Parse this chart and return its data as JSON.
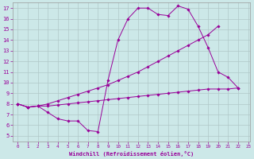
{
  "line1_x": [
    0,
    1,
    2,
    3,
    4,
    5,
    6,
    7,
    8,
    9,
    10,
    11,
    12,
    13,
    14,
    15,
    16,
    17,
    18,
    19,
    20,
    21,
    22
  ],
  "line1_y": [
    8.0,
    7.7,
    7.8,
    7.2,
    6.6,
    6.4,
    6.4,
    5.5,
    5.4,
    10.2,
    14.0,
    16.0,
    17.0,
    17.0,
    16.4,
    16.3,
    17.2,
    16.9,
    15.3,
    13.3,
    11.0,
    10.5,
    9.5
  ],
  "line2_x": [
    0,
    1,
    2,
    3,
    4,
    5,
    6,
    7,
    8,
    9,
    10,
    11,
    12,
    13,
    14,
    15,
    16,
    17,
    18,
    19,
    20
  ],
  "line2_y": [
    8.0,
    7.7,
    7.8,
    8.0,
    8.3,
    8.6,
    8.9,
    9.2,
    9.5,
    9.8,
    10.2,
    10.6,
    11.0,
    11.5,
    12.0,
    12.5,
    13.0,
    13.5,
    14.0,
    14.5,
    15.3
  ],
  "line3_x": [
    0,
    1,
    2,
    3,
    4,
    5,
    6,
    7,
    8,
    9,
    10,
    11,
    12,
    13,
    14,
    15,
    16,
    17,
    18,
    19,
    20,
    21,
    22
  ],
  "line3_y": [
    8.0,
    7.7,
    7.8,
    7.8,
    7.9,
    8.0,
    8.1,
    8.2,
    8.3,
    8.4,
    8.5,
    8.6,
    8.7,
    8.8,
    8.9,
    9.0,
    9.1,
    9.2,
    9.3,
    9.4,
    9.4,
    9.4,
    9.5
  ],
  "line_color": "#990099",
  "bg_color": "#cce8e8",
  "grid_color": "#b0c8c8",
  "xlabel": "Windchill (Refroidissement éolien,°C)",
  "ylim_min": 5,
  "ylim_max": 17,
  "xlim_min": 0,
  "xlim_max": 23,
  "yticks": [
    5,
    6,
    7,
    8,
    9,
    10,
    11,
    12,
    13,
    14,
    15,
    16,
    17
  ],
  "xticks": [
    0,
    1,
    2,
    3,
    4,
    5,
    6,
    7,
    8,
    9,
    10,
    11,
    12,
    13,
    14,
    15,
    16,
    17,
    18,
    19,
    20,
    21,
    22,
    23
  ]
}
